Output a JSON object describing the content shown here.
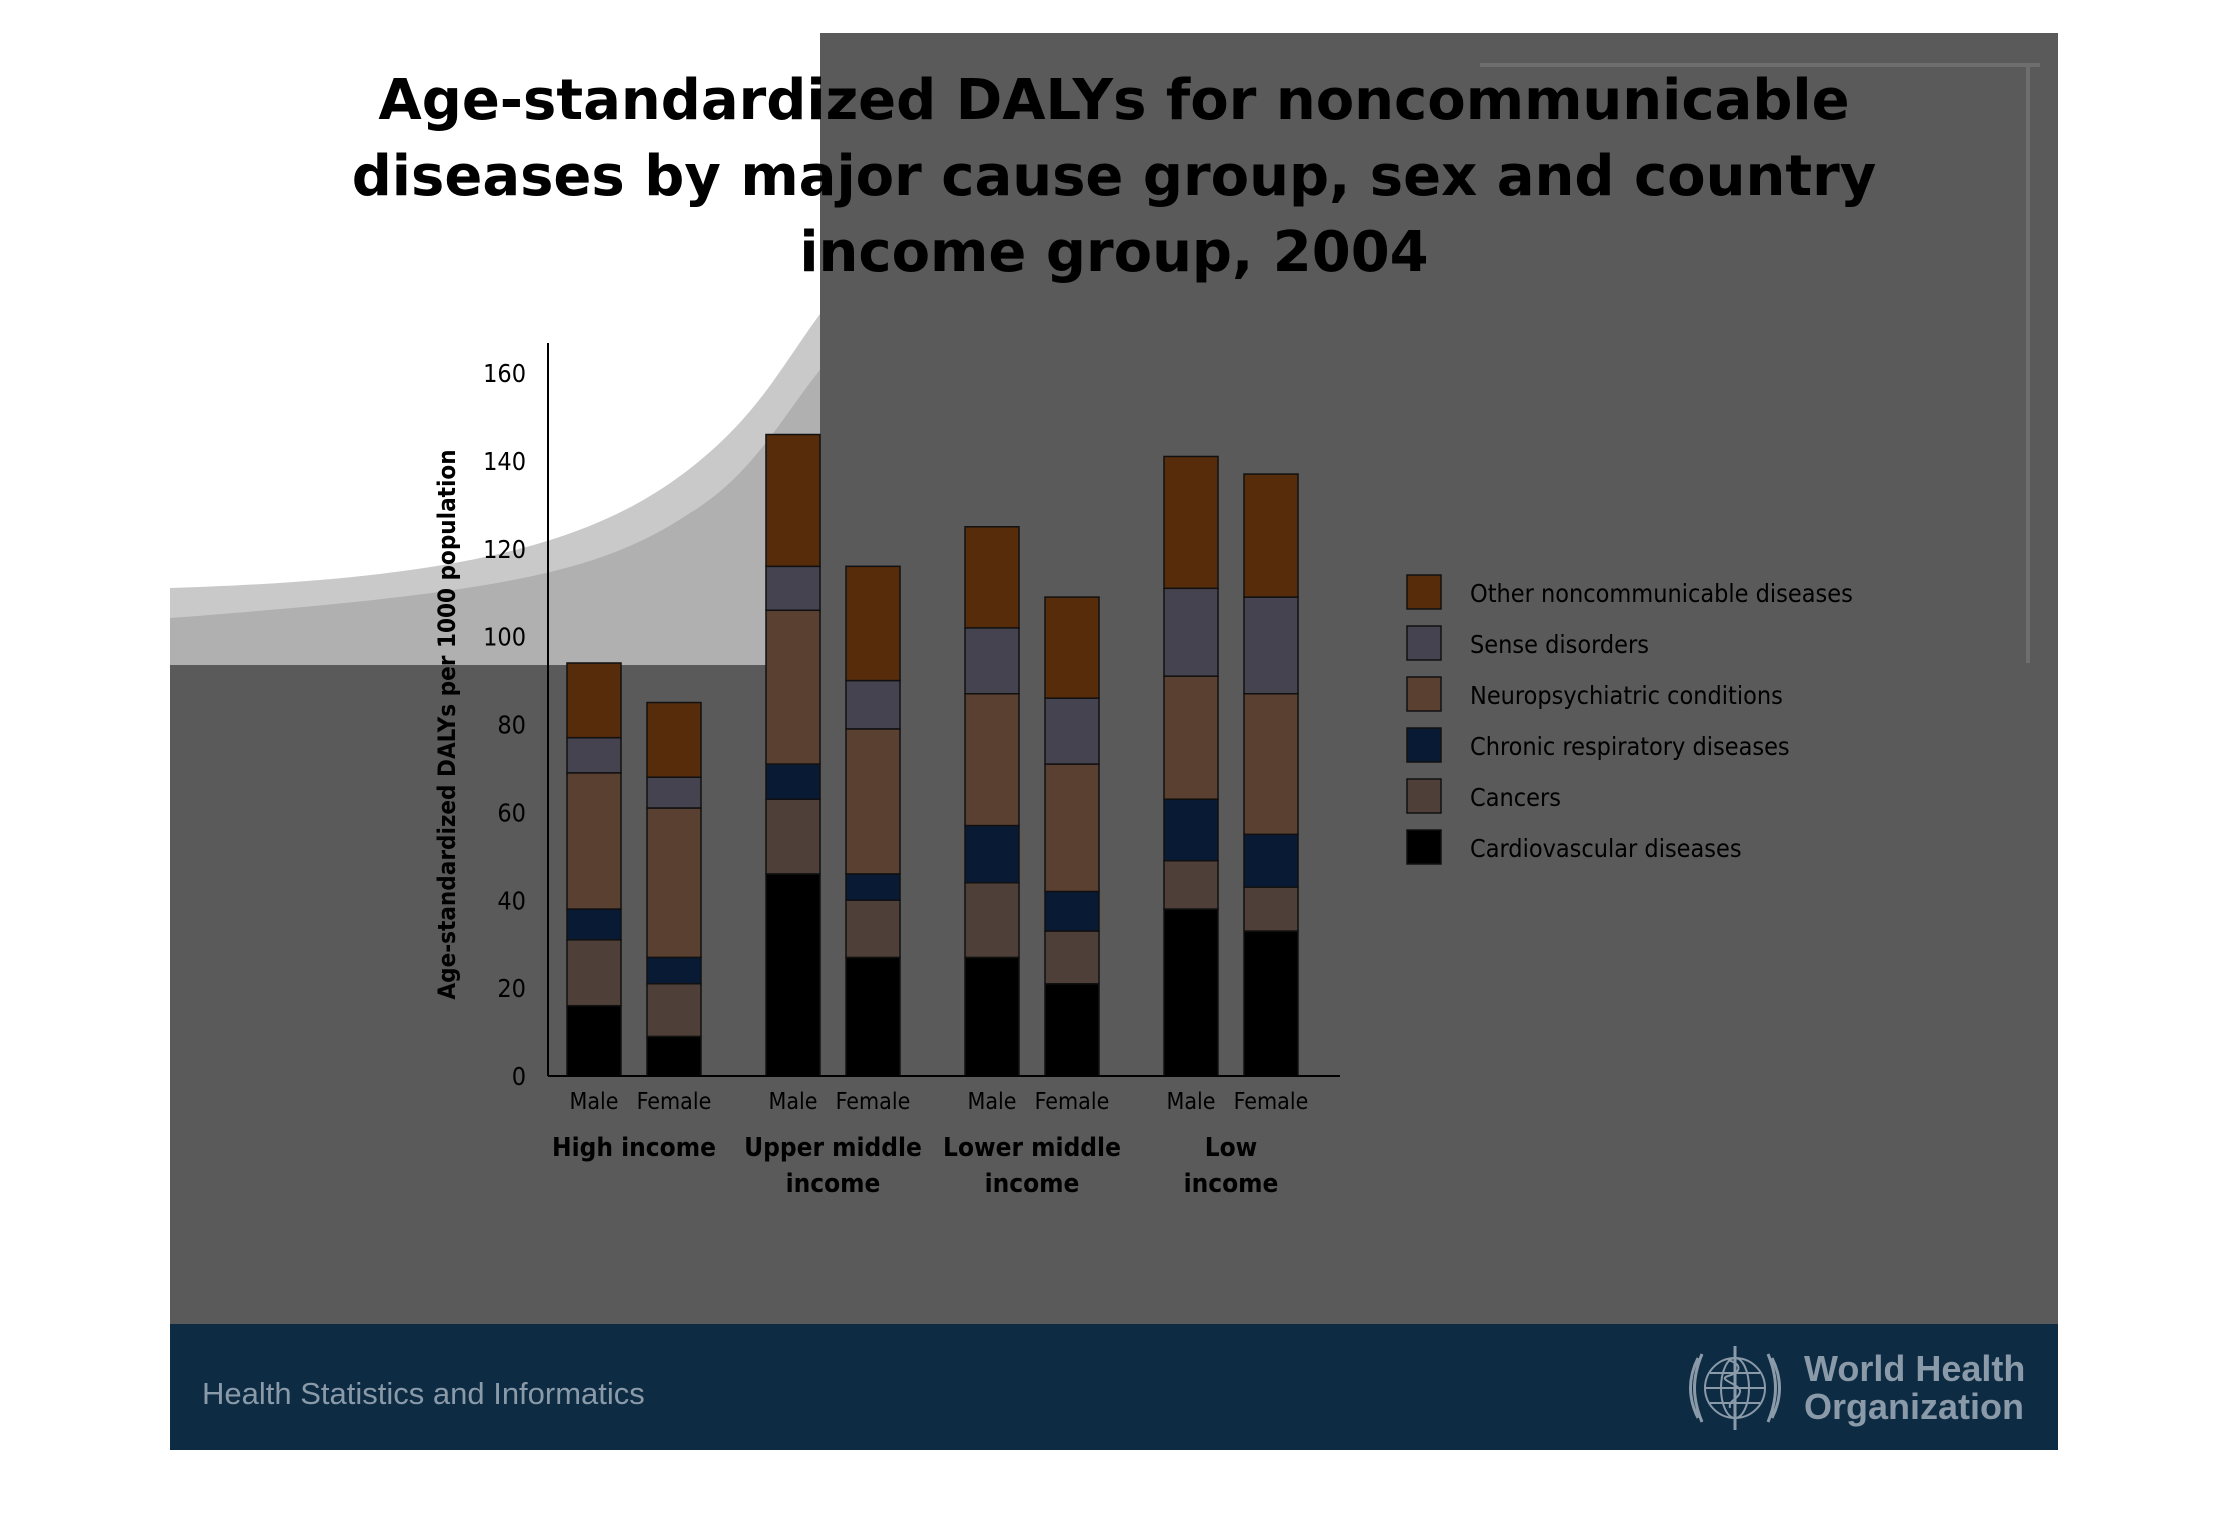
{
  "slide": {
    "title_lines": [
      "Age-standardized DALYs for noncommunicable",
      "diseases by major cause group,  sex and country",
      "income group, 2004"
    ],
    "footer_text": "Health Statistics and Informatics",
    "who_name_lines": [
      "World Health",
      "Organization"
    ],
    "colors": {
      "slide_bg": "#5a5a5a",
      "footer_bg": "#0d2b43",
      "footer_text": "#8a9aa8"
    }
  },
  "chart_data": {
    "type": "bar",
    "stacked": true,
    "title": "Age-standardized DALYs for noncommunicable diseases by major cause group,  sex and country income group, 2004",
    "ylabel": "Age-standardized DALYs per 1000 population",
    "ylim": [
      0,
      160
    ],
    "yticks": [
      0,
      20,
      40,
      60,
      80,
      100,
      120,
      140,
      160
    ],
    "groups": [
      {
        "label_lines": [
          "High income"
        ],
        "bars": [
          "Male",
          "Female"
        ]
      },
      {
        "label_lines": [
          "Upper middle",
          "income"
        ],
        "bars": [
          "Male",
          "Female"
        ]
      },
      {
        "label_lines": [
          "Lower middle",
          "income"
        ],
        "bars": [
          "Male",
          "Female"
        ]
      },
      {
        "label_lines": [
          "Low",
          "income"
        ],
        "bars": [
          "Male",
          "Female"
        ]
      }
    ],
    "categories": [
      "High income Male",
      "High income Female",
      "Upper middle income Male",
      "Upper middle income Female",
      "Lower middle income Male",
      "Lower middle income Female",
      "Low income Male",
      "Low income Female"
    ],
    "series": [
      {
        "name": "Cardiovascular diseases",
        "color": "#000000",
        "values": [
          16,
          9,
          46,
          27,
          27,
          21,
          38,
          33
        ]
      },
      {
        "name": "Cancers",
        "color": "#4e4038",
        "values": [
          15,
          12,
          17,
          13,
          17,
          12,
          11,
          10
        ]
      },
      {
        "name": "Chronic respiratory diseases",
        "color": "#081a34",
        "values": [
          7,
          6,
          8,
          6,
          13,
          9,
          14,
          12
        ]
      },
      {
        "name": "Neuropsychiatric conditions",
        "color": "#5a4030",
        "values": [
          31,
          34,
          35,
          33,
          30,
          29,
          28,
          32
        ]
      },
      {
        "name": "Sense disorders",
        "color": "#44434f",
        "values": [
          8,
          7,
          10,
          11,
          15,
          15,
          20,
          22
        ]
      },
      {
        "name": "Other noncommunicable diseases",
        "color": "#572c0b",
        "values": [
          17,
          17,
          30,
          26,
          23,
          23,
          30,
          28
        ]
      }
    ],
    "legend": {
      "position": "right",
      "order": [
        "Other noncommunicable diseases",
        "Sense disorders",
        "Neuropsychiatric conditions",
        "Chronic respiratory diseases",
        "Cancers",
        "Cardiovascular diseases"
      ]
    },
    "grid": false
  }
}
